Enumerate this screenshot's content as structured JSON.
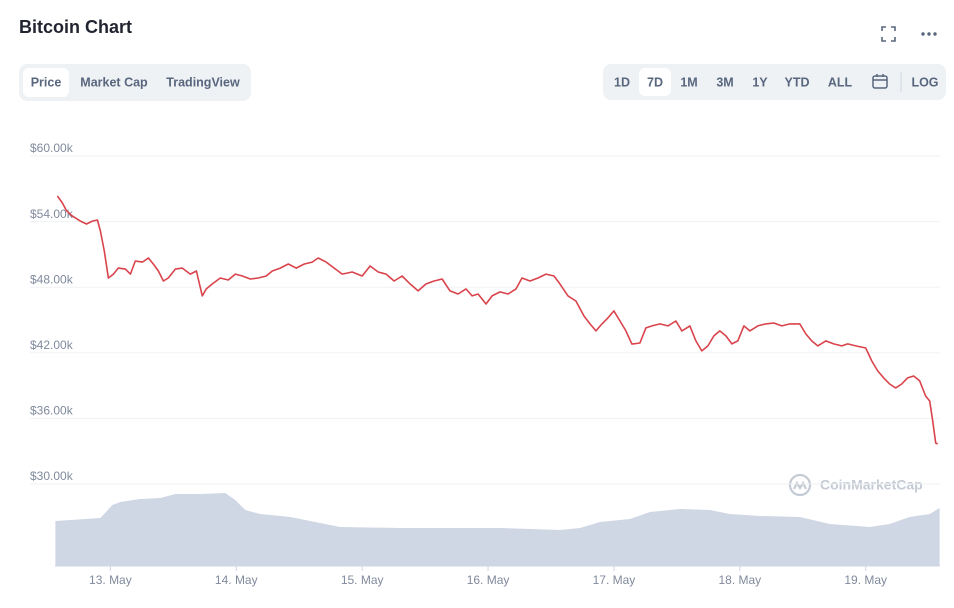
{
  "chart_data": {
    "type": "line",
    "title": "Bitcoin Chart",
    "tabs": [
      "Price",
      "Market Cap",
      "TradingView"
    ],
    "ranges": [
      "1D",
      "7D",
      "1M",
      "3M",
      "1Y",
      "YTD",
      "ALL"
    ],
    "log_button": "LOG",
    "watermark": "CoinMarketCap",
    "grid": true,
    "xlim": [
      12.56,
      19.59
    ],
    "xticks": [
      {
        "value": 13,
        "label": "13. May"
      },
      {
        "value": 14,
        "label": "14. May"
      },
      {
        "value": 15,
        "label": "15. May"
      },
      {
        "value": 16,
        "label": "16. May"
      },
      {
        "value": 17,
        "label": "17. May"
      },
      {
        "value": 18,
        "label": "18. May"
      },
      {
        "value": 19,
        "label": "19. May"
      }
    ],
    "ylim": [
      30000,
      60000
    ],
    "yticks": [
      {
        "value": 30000,
        "label": "$30.00k"
      },
      {
        "value": 36000,
        "label": "$36.00k"
      },
      {
        "value": 42000,
        "label": "$42.00k"
      },
      {
        "value": 48000,
        "label": "$48.00k"
      },
      {
        "value": 54000,
        "label": "$54.00k"
      },
      {
        "value": 60000,
        "label": "$60.00k"
      }
    ],
    "color": "#d9444c",
    "x": [
      12.579,
      12.619,
      12.651,
      12.698,
      12.762,
      12.81,
      12.857,
      12.897,
      12.921,
      12.952,
      12.984,
      13.024,
      13.063,
      13.119,
      13.159,
      13.198,
      13.254,
      13.302,
      13.341,
      13.381,
      13.421,
      13.46,
      13.516,
      13.571,
      13.635,
      13.683,
      13.73,
      13.762,
      13.81,
      13.873,
      13.937,
      13.992,
      14.048,
      14.111,
      14.175,
      14.238,
      14.286,
      14.349,
      14.413,
      14.476,
      14.54,
      14.603,
      14.651,
      14.714,
      14.778,
      14.841,
      14.921,
      15.0,
      15.063,
      15.127,
      15.19,
      15.254,
      15.317,
      15.381,
      15.444,
      15.508,
      15.571,
      15.635,
      15.698,
      15.762,
      15.825,
      15.873,
      15.921,
      15.984,
      16.032,
      16.095,
      16.159,
      16.222,
      16.27,
      16.333,
      16.397,
      16.46,
      16.524,
      16.571,
      16.635,
      16.698,
      16.762,
      16.81,
      16.857,
      16.905,
      16.952,
      17.0,
      17.048,
      17.095,
      17.143,
      17.206,
      17.254,
      17.302,
      17.365,
      17.429,
      17.492,
      17.54,
      17.603,
      17.651,
      17.698,
      17.746,
      17.794,
      17.841,
      17.889,
      17.937,
      17.984,
      18.032,
      18.079,
      18.143,
      18.206,
      18.27,
      18.333,
      18.397,
      18.476,
      18.524,
      18.571,
      18.619,
      18.683,
      18.746,
      18.81,
      18.857,
      18.921,
      19.0,
      19.048,
      19.095,
      19.143,
      19.19,
      19.238,
      19.286,
      19.333,
      19.381,
      19.429,
      19.476,
      19.508,
      19.532,
      19.556,
      19.571
    ],
    "values": [
      56340,
      55700,
      55000,
      54500,
      54050,
      53780,
      54050,
      54150,
      53140,
      51310,
      48840,
      49200,
      49750,
      49660,
      49200,
      50400,
      50300,
      50670,
      50120,
      49480,
      48570,
      48840,
      49660,
      49750,
      49200,
      49480,
      47200,
      47840,
      48300,
      48840,
      48660,
      49200,
      49020,
      48750,
      48840,
      49020,
      49480,
      49750,
      50120,
      49750,
      50120,
      50300,
      50670,
      50300,
      49750,
      49200,
      49390,
      49020,
      49940,
      49390,
      49200,
      48570,
      49020,
      48300,
      47660,
      48300,
      48570,
      48750,
      47660,
      47380,
      47840,
      47200,
      47380,
      46460,
      47200,
      47570,
      47380,
      47840,
      48840,
      48570,
      48840,
      49200,
      49020,
      48300,
      47200,
      46740,
      45370,
      44640,
      44000,
      44640,
      45190,
      45830,
      44910,
      44000,
      42800,
      42900,
      44280,
      44460,
      44640,
      44460,
      44910,
      44000,
      44460,
      43090,
      42170,
      42630,
      43550,
      44000,
      43550,
      42810,
      43090,
      44460,
      44000,
      44460,
      44640,
      44730,
      44460,
      44640,
      44640,
      43730,
      43090,
      42630,
      43090,
      42810,
      42630,
      42810,
      42630,
      42440,
      41250,
      40340,
      39700,
      39150,
      38790,
      39150,
      39700,
      39880,
      39430,
      38050,
      37590,
      35770,
      33750,
      33660
    ],
    "volume": {
      "color": "#cfd6e4",
      "ylim": [
        0,
        100
      ],
      "x": [
        12.563,
        12.921,
        13.016,
        13.079,
        13.238,
        13.397,
        13.516,
        13.714,
        13.913,
        13.992,
        14.071,
        14.19,
        14.429,
        14.587,
        14.825,
        15.302,
        16.095,
        16.571,
        16.73,
        16.889,
        17.127,
        17.286,
        17.524,
        17.762,
        17.921,
        18.159,
        18.476,
        18.714,
        19.032,
        19.19,
        19.349,
        19.508,
        19.587
      ],
      "values": [
        45,
        48,
        61,
        64,
        67,
        68,
        72,
        72,
        73,
        66,
        56,
        52,
        49,
        45,
        39,
        38,
        38,
        36,
        38,
        44,
        47,
        54,
        57,
        56,
        52,
        50,
        49,
        42,
        39,
        42,
        49,
        52,
        58
      ]
    }
  }
}
